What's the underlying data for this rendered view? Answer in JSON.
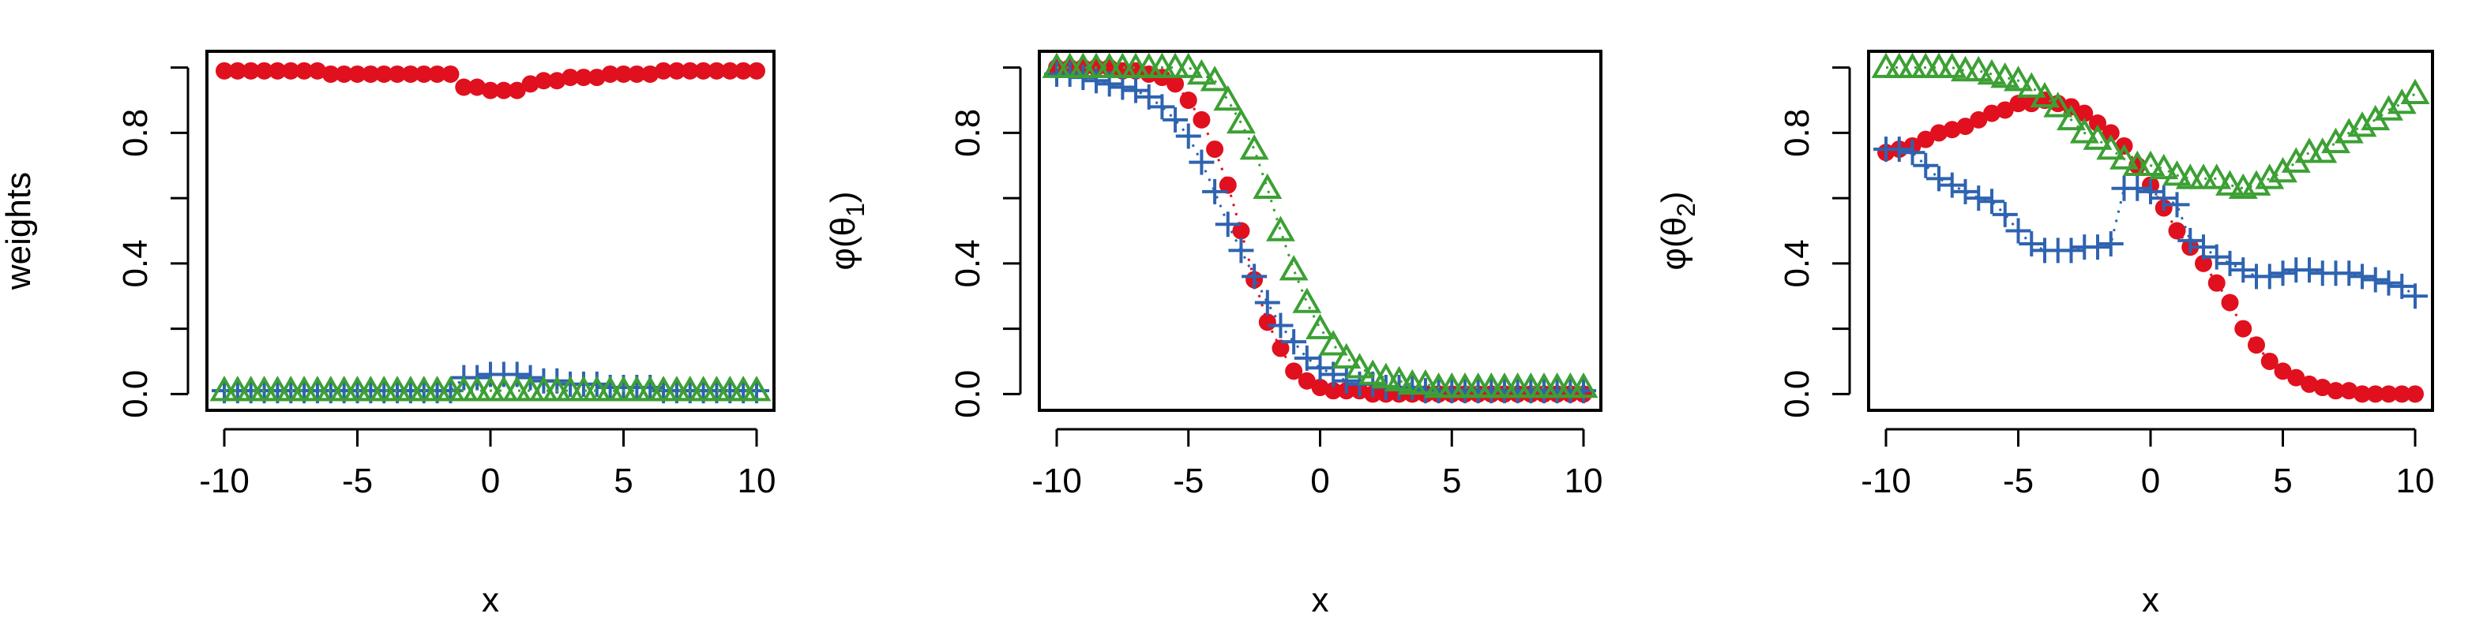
{
  "colors": {
    "red": "#e0101e",
    "blue": "#2e63b0",
    "green": "#3ca034"
  },
  "marker_styles": {
    "red": "filled-circle",
    "blue": "plus",
    "green": "open-triangle"
  },
  "chart_data": [
    {
      "type": "scatter",
      "title": "",
      "xlabel": "x",
      "ylabel": "weights",
      "xlim": [
        -10,
        10
      ],
      "ylim": [
        -0.05,
        1.05
      ],
      "xticks": [
        "-10",
        "-5",
        "0",
        "5",
        "10"
      ],
      "yticks": [
        "0.0",
        "0.4",
        "0.8"
      ],
      "yminorticks": [
        0.2,
        0.6,
        1.0
      ],
      "grid": false,
      "legend": null,
      "x": [
        -10,
        -9.5,
        -9,
        -8.5,
        -8,
        -7.5,
        -7,
        -6.5,
        -6,
        -5.5,
        -5,
        -4.5,
        -4,
        -3.5,
        -3,
        -2.5,
        -2,
        -1.5,
        -1,
        -0.5,
        0,
        0.5,
        1,
        1.5,
        2,
        2.5,
        3,
        3.5,
        4,
        4.5,
        5,
        5.5,
        6,
        6.5,
        7,
        7.5,
        8,
        8.5,
        9,
        9.5,
        10
      ],
      "series": [
        {
          "color_key": "red",
          "marker": "filled-circle",
          "values": [
            0.99,
            0.99,
            0.99,
            0.99,
            0.99,
            0.99,
            0.99,
            0.99,
            0.98,
            0.98,
            0.98,
            0.98,
            0.98,
            0.98,
            0.98,
            0.98,
            0.98,
            0.98,
            0.94,
            0.94,
            0.93,
            0.93,
            0.93,
            0.95,
            0.96,
            0.96,
            0.97,
            0.97,
            0.97,
            0.98,
            0.98,
            0.98,
            0.98,
            0.99,
            0.99,
            0.99,
            0.99,
            0.99,
            0.99,
            0.99,
            0.99
          ]
        },
        {
          "color_key": "blue",
          "marker": "plus",
          "values": [
            0.01,
            0.01,
            0.01,
            0.01,
            0.01,
            0.01,
            0.01,
            0.01,
            0.01,
            0.01,
            0.01,
            0.01,
            0.01,
            0.01,
            0.01,
            0.01,
            0.01,
            0.01,
            0.05,
            0.05,
            0.06,
            0.06,
            0.06,
            0.05,
            0.04,
            0.04,
            0.03,
            0.03,
            0.03,
            0.02,
            0.02,
            0.02,
            0.02,
            0.01,
            0.01,
            0.01,
            0.01,
            0.01,
            0.01,
            0.01,
            0.01
          ]
        },
        {
          "color_key": "green",
          "marker": "open-triangle",
          "values": [
            0.01,
            0.01,
            0.01,
            0.01,
            0.01,
            0.01,
            0.01,
            0.01,
            0.01,
            0.01,
            0.01,
            0.01,
            0.01,
            0.01,
            0.01,
            0.01,
            0.01,
            0.01,
            0.01,
            0.01,
            0.01,
            0.01,
            0.01,
            0.01,
            0.01,
            0.01,
            0.01,
            0.01,
            0.01,
            0.01,
            0.01,
            0.01,
            0.01,
            0.01,
            0.01,
            0.01,
            0.01,
            0.01,
            0.01,
            0.01,
            0.01
          ]
        }
      ]
    },
    {
      "type": "scatter",
      "title": "",
      "xlabel": "x",
      "ylabel": "φ(θ1)",
      "ylabel_parts": {
        "prefix": "φ(θ",
        "sub": "1",
        "suffix": ")"
      },
      "xlim": [
        -10,
        10
      ],
      "ylim": [
        -0.05,
        1.05
      ],
      "xticks": [
        "-10",
        "-5",
        "0",
        "5",
        "10"
      ],
      "yticks": [
        "0.0",
        "0.4",
        "0.8"
      ],
      "yminorticks": [
        0.2,
        0.6,
        1.0
      ],
      "grid": false,
      "legend": null,
      "x": [
        -10,
        -9.5,
        -9,
        -8.5,
        -8,
        -7.5,
        -7,
        -6.5,
        -6,
        -5.5,
        -5,
        -4.5,
        -4,
        -3.5,
        -3,
        -2.5,
        -2,
        -1.5,
        -1,
        -0.5,
        0,
        0.5,
        1,
        1.5,
        2,
        2.5,
        3,
        3.5,
        4,
        4.5,
        5,
        5.5,
        6,
        6.5,
        7,
        7.5,
        8,
        8.5,
        9,
        9.5,
        10
      ],
      "series": [
        {
          "color_key": "red",
          "marker": "filled-circle",
          "values": [
            1.0,
            1.0,
            1.0,
            1.0,
            1.0,
            0.99,
            0.99,
            0.98,
            0.97,
            0.95,
            0.9,
            0.84,
            0.75,
            0.64,
            0.5,
            0.35,
            0.22,
            0.14,
            0.07,
            0.04,
            0.02,
            0.01,
            0.01,
            0.01,
            0.0,
            0.0,
            0.0,
            0.0,
            0.0,
            0.0,
            0.0,
            0.0,
            0.0,
            0.0,
            0.0,
            0.0,
            0.0,
            0.0,
            0.0,
            0.0,
            0.0
          ]
        },
        {
          "color_key": "blue",
          "marker": "plus",
          "values": [
            0.98,
            0.98,
            0.97,
            0.96,
            0.95,
            0.94,
            0.93,
            0.91,
            0.88,
            0.84,
            0.79,
            0.71,
            0.62,
            0.52,
            0.44,
            0.36,
            0.28,
            0.21,
            0.16,
            0.11,
            0.08,
            0.06,
            0.04,
            0.03,
            0.03,
            0.02,
            0.02,
            0.02,
            0.01,
            0.01,
            0.01,
            0.01,
            0.01,
            0.01,
            0.01,
            0.01,
            0.01,
            0.01,
            0.01,
            0.01,
            0.01
          ]
        },
        {
          "color_key": "green",
          "marker": "open-triangle",
          "values": [
            1.0,
            1.0,
            1.0,
            1.0,
            1.0,
            1.0,
            1.0,
            1.0,
            1.0,
            1.0,
            1.0,
            0.98,
            0.96,
            0.9,
            0.83,
            0.75,
            0.63,
            0.5,
            0.38,
            0.28,
            0.2,
            0.15,
            0.11,
            0.08,
            0.06,
            0.05,
            0.04,
            0.03,
            0.03,
            0.02,
            0.02,
            0.02,
            0.02,
            0.02,
            0.02,
            0.02,
            0.02,
            0.02,
            0.02,
            0.02,
            0.02
          ]
        }
      ]
    },
    {
      "type": "scatter",
      "title": "",
      "xlabel": "x",
      "ylabel": "φ(θ2)",
      "ylabel_parts": {
        "prefix": "φ(θ",
        "sub": "2",
        "suffix": ")"
      },
      "xlim": [
        -10,
        10
      ],
      "ylim": [
        -0.05,
        1.05
      ],
      "xticks": [
        "-10",
        "-5",
        "0",
        "5",
        "10"
      ],
      "yticks": [
        "0.0",
        "0.4",
        "0.8"
      ],
      "yminorticks": [
        0.2,
        0.6,
        1.0
      ],
      "grid": false,
      "legend": null,
      "x": [
        -10,
        -9.5,
        -9,
        -8.5,
        -8,
        -7.5,
        -7,
        -6.5,
        -6,
        -5.5,
        -5,
        -4.5,
        -4,
        -3.5,
        -3,
        -2.5,
        -2,
        -1.5,
        -1,
        -0.5,
        0,
        0.5,
        1,
        1.5,
        2,
        2.5,
        3,
        3.5,
        4,
        4.5,
        5,
        5.5,
        6,
        6.5,
        7,
        7.5,
        8,
        8.5,
        9,
        9.5,
        10
      ],
      "series": [
        {
          "color_key": "red",
          "marker": "filled-circle",
          "values": [
            0.74,
            0.75,
            0.76,
            0.78,
            0.8,
            0.81,
            0.82,
            0.84,
            0.86,
            0.87,
            0.89,
            0.89,
            0.9,
            0.89,
            0.88,
            0.86,
            0.83,
            0.8,
            0.76,
            0.7,
            0.64,
            0.57,
            0.5,
            0.45,
            0.4,
            0.34,
            0.28,
            0.2,
            0.15,
            0.1,
            0.07,
            0.05,
            0.03,
            0.02,
            0.01,
            0.01,
            0.0,
            0.0,
            0.0,
            0.0,
            0.0
          ]
        },
        {
          "color_key": "blue",
          "marker": "plus",
          "values": [
            0.75,
            0.75,
            0.74,
            0.7,
            0.66,
            0.64,
            0.62,
            0.6,
            0.59,
            0.55,
            0.5,
            0.46,
            0.44,
            0.44,
            0.44,
            0.45,
            0.45,
            0.46,
            0.63,
            0.63,
            0.62,
            0.6,
            0.58,
            0.47,
            0.45,
            0.42,
            0.4,
            0.38,
            0.36,
            0.36,
            0.37,
            0.38,
            0.38,
            0.37,
            0.37,
            0.37,
            0.36,
            0.35,
            0.34,
            0.33,
            0.3
          ]
        },
        {
          "color_key": "green",
          "marker": "open-triangle",
          "values": [
            1.0,
            1.0,
            1.0,
            1.0,
            1.0,
            1.0,
            0.99,
            0.99,
            0.98,
            0.97,
            0.96,
            0.94,
            0.91,
            0.88,
            0.84,
            0.8,
            0.78,
            0.75,
            0.72,
            0.7,
            0.7,
            0.69,
            0.67,
            0.66,
            0.66,
            0.66,
            0.64,
            0.63,
            0.64,
            0.66,
            0.68,
            0.71,
            0.74,
            0.74,
            0.77,
            0.8,
            0.82,
            0.84,
            0.87,
            0.89,
            0.92
          ]
        }
      ]
    }
  ]
}
